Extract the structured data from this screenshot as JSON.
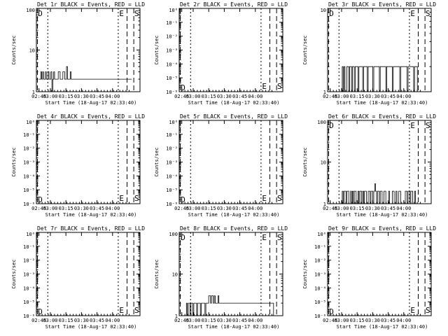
{
  "chart_data": [
    {
      "type": "line",
      "title": "Det 1r BLACK = Events, RED = LLD",
      "ylabel": "Counts/sec",
      "xlabel": "Start Time (18-Aug-17 02:33:40)",
      "x_ticks": [
        "02:45",
        "03:00",
        "03:15",
        "03:30",
        "03:45",
        "04:00"
      ],
      "y_scale": "log",
      "y_ticks": [
        "1",
        "10",
        "100"
      ],
      "ylim": [
        1,
        100
      ],
      "markers": [
        "D",
        "E",
        "S"
      ],
      "series": [
        {
          "values": [
            2,
            2,
            3,
            2,
            3,
            2,
            2,
            3,
            2,
            2,
            3,
            2,
            2,
            3,
            1,
            2,
            3,
            2,
            2,
            2,
            2,
            3,
            3,
            2,
            2,
            2,
            3,
            3,
            2,
            2,
            4,
            2,
            2,
            2,
            3,
            2,
            2,
            2,
            2,
            2,
            2,
            2,
            2,
            2,
            2,
            2,
            2,
            2,
            2,
            2,
            2,
            2,
            2,
            2,
            2,
            2,
            2,
            2,
            2,
            2,
            2,
            2,
            2,
            2,
            2,
            2,
            2,
            2,
            2,
            2,
            2,
            2,
            2,
            2,
            2,
            2,
            2,
            2,
            2,
            2,
            2,
            2,
            2,
            2,
            2,
            2,
            2,
            2,
            2,
            2,
            2,
            2,
            2,
            2,
            2,
            2,
            2,
            2,
            2,
            2,
            2
          ]
        }
      ]
    },
    {
      "type": "line",
      "title": "Det 2r BLACK = Events, RED = LLD",
      "ylabel": "Counts/sec",
      "xlabel": "Start Time (18-Aug-17 02:33:40)",
      "x_ticks": [
        "02:45",
        "03:00",
        "03:15",
        "03:30",
        "03:45",
        "04:00"
      ],
      "y_scale": "log",
      "y_ticks": [
        "10⁰",
        "10⁻¹",
        "10⁻²",
        "10⁻³",
        "10⁻⁴",
        "10⁻⁵",
        "10⁻⁶"
      ],
      "ylim": [
        1e-06,
        1
      ],
      "markers": [
        "D",
        "E",
        "S"
      ],
      "series": []
    },
    {
      "type": "line",
      "title": "Det 3r BLACK = Events, RED = LLD",
      "ylabel": "Counts/sec",
      "xlabel": "Start Time (18-Aug-17 02:33:40)",
      "x_ticks": [
        "02:45",
        "03:00",
        "03:15",
        "03:30",
        "03:45",
        "04:00"
      ],
      "y_scale": "log",
      "y_ticks": [
        "1",
        "10"
      ],
      "ylim": [
        1,
        10
      ],
      "markers": [
        "D",
        "E",
        "S"
      ],
      "series": [
        {
          "values": [
            1,
            1,
            1,
            1,
            1,
            1,
            1,
            1,
            1,
            1,
            1,
            1,
            1,
            2,
            1,
            2,
            1,
            1,
            2,
            2,
            1,
            2,
            2,
            1,
            2,
            2,
            1,
            2,
            2,
            2,
            1,
            2,
            2,
            2,
            2,
            1,
            2,
            2,
            2,
            2,
            1,
            2,
            2,
            2,
            2,
            2,
            1,
            2,
            2,
            2,
            2,
            2,
            2,
            1,
            2,
            2,
            2,
            2,
            2,
            2,
            1,
            2,
            2,
            2,
            2,
            2,
            2,
            1,
            2,
            2,
            2,
            2,
            2,
            2,
            2,
            1,
            2,
            2,
            2,
            2,
            2,
            2,
            2,
            1,
            2,
            2,
            2,
            2,
            2,
            2,
            1,
            2,
            2,
            2,
            1,
            1,
            1,
            1,
            1,
            1
          ]
        }
      ]
    },
    {
      "type": "line",
      "title": "Det 4r BLACK = Events, RED = LLD",
      "ylabel": "Counts/sec",
      "xlabel": "Start Time (18-Aug-17 02:33:40)",
      "x_ticks": [
        "02:45",
        "03:00",
        "03:15",
        "03:30",
        "03:45",
        "04:00"
      ],
      "y_scale": "log",
      "y_ticks": [
        "10⁰",
        "10⁻¹",
        "10⁻²",
        "10⁻³",
        "10⁻⁴",
        "10⁻⁵",
        "10⁻⁶"
      ],
      "ylim": [
        1e-06,
        1
      ],
      "markers": [
        "D",
        "E",
        "S"
      ],
      "series": []
    },
    {
      "type": "line",
      "title": "Det 5r BLACK = Events, RED = LLD",
      "ylabel": "Counts/sec",
      "xlabel": "Start Time (18-Aug-17 02:33:40)",
      "x_ticks": [
        "02:45",
        "03:00",
        "03:15",
        "03:30",
        "03:45",
        "04:00"
      ],
      "y_scale": "log",
      "y_ticks": [
        "10⁰",
        "10⁻¹",
        "10⁻²",
        "10⁻³",
        "10⁻⁴",
        "10⁻⁵",
        "10⁻⁶"
      ],
      "ylim": [
        1e-06,
        1
      ],
      "markers": [
        "D",
        "E",
        "S"
      ],
      "series": []
    },
    {
      "type": "line",
      "title": "Det 6r BLACK = Events, RED = LLD",
      "ylabel": "Counts/sec",
      "xlabel": "Start Time (18-Aug-17 02:33:40)",
      "x_ticks": [
        "02:45",
        "03:00",
        "03:15",
        "03:30",
        "03:45",
        "04:00"
      ],
      "y_scale": "log",
      "y_ticks": [
        "1",
        "10",
        "100"
      ],
      "ylim": [
        1,
        100
      ],
      "markers": [
        "D",
        "E",
        "S"
      ],
      "series": [
        {
          "values": [
            1,
            1,
            1,
            1,
            1,
            1,
            1,
            1,
            1,
            1,
            1,
            1,
            1,
            2,
            1,
            2,
            2,
            1,
            2,
            2,
            1,
            1,
            2,
            1,
            2,
            1,
            2,
            2,
            1,
            1,
            2,
            1,
            2,
            2,
            1,
            2,
            1,
            2,
            2,
            1,
            1,
            2,
            2,
            1,
            2,
            2,
            1,
            2,
            3,
            2,
            1,
            2,
            2,
            1,
            2,
            2,
            1,
            1,
            2,
            2,
            1,
            1,
            1,
            2,
            1,
            1,
            1,
            2,
            2,
            1,
            1,
            2,
            1,
            1,
            2,
            2,
            1,
            1,
            1,
            1,
            1,
            2,
            2,
            1,
            2,
            2,
            1,
            2,
            2,
            1,
            1,
            2,
            1,
            1,
            1,
            1,
            1,
            1,
            1,
            1
          ]
        }
      ]
    },
    {
      "type": "line",
      "title": "Det 7r BLACK = Events, RED = LLD",
      "ylabel": "Counts/sec",
      "xlabel": "Start Time (18-Aug-17 02:33:40)",
      "x_ticks": [
        "02:45",
        "03:00",
        "03:15",
        "03:30",
        "03:45",
        "04:00"
      ],
      "y_scale": "log",
      "y_ticks": [
        "10⁰",
        "10⁻¹",
        "10⁻²",
        "10⁻³",
        "10⁻⁴",
        "10⁻⁵",
        "10⁻⁶"
      ],
      "ylim": [
        1e-06,
        1
      ],
      "markers": [
        "D",
        "E",
        "S"
      ],
      "series": []
    },
    {
      "type": "line",
      "title": "Det 8r BLACK = Events, RED = LLD",
      "ylabel": "Counts/sec",
      "xlabel": "Start Time (18-Aug-17 02:33:40)",
      "x_ticks": [
        "02:45",
        "03:00",
        "03:15",
        "03:30",
        "03:45",
        "04:00"
      ],
      "y_scale": "log",
      "y_ticks": [
        "1",
        "10",
        "100"
      ],
      "ylim": [
        1,
        100
      ],
      "markers": [
        "D",
        "E",
        "S"
      ],
      "series": [
        {
          "values": [
            1,
            1,
            1,
            1,
            1,
            2,
            1,
            2,
            2,
            1,
            2,
            2,
            1,
            2,
            2,
            2,
            1,
            2,
            2,
            2,
            1,
            2,
            2,
            2,
            2,
            1,
            2,
            2,
            2,
            3,
            3,
            2,
            3,
            3,
            2,
            3,
            2,
            2,
            2,
            3,
            2,
            2,
            2,
            2,
            2,
            2,
            2,
            2,
            2,
            2,
            2,
            2,
            2,
            2,
            2,
            2,
            2,
            2,
            2,
            2,
            2,
            2,
            2,
            2,
            2,
            2,
            2,
            2,
            2,
            2,
            2,
            2,
            2,
            2,
            2,
            2,
            2,
            2,
            2,
            2,
            2,
            2,
            2,
            2,
            2,
            2,
            2,
            2,
            2,
            2,
            2,
            2,
            2,
            2,
            2,
            2,
            2,
            2,
            2,
            1
          ]
        }
      ]
    },
    {
      "type": "line",
      "title": "Det 9r BLACK = Events, RED = LLD",
      "ylabel": "Counts/sec",
      "xlabel": "Start Time (18-Aug-17 02:33:40)",
      "x_ticks": [
        "02:45",
        "03:00",
        "03:15",
        "03:30",
        "03:45",
        "04:00"
      ],
      "y_scale": "log",
      "y_ticks": [
        "10⁰",
        "10⁻¹",
        "10⁻²",
        "10⁻³",
        "10⁻⁴",
        "10⁻⁵",
        "10⁻⁶"
      ],
      "ylim": [
        1e-06,
        1
      ],
      "markers": [
        "D",
        "E",
        "S"
      ],
      "series": []
    }
  ]
}
